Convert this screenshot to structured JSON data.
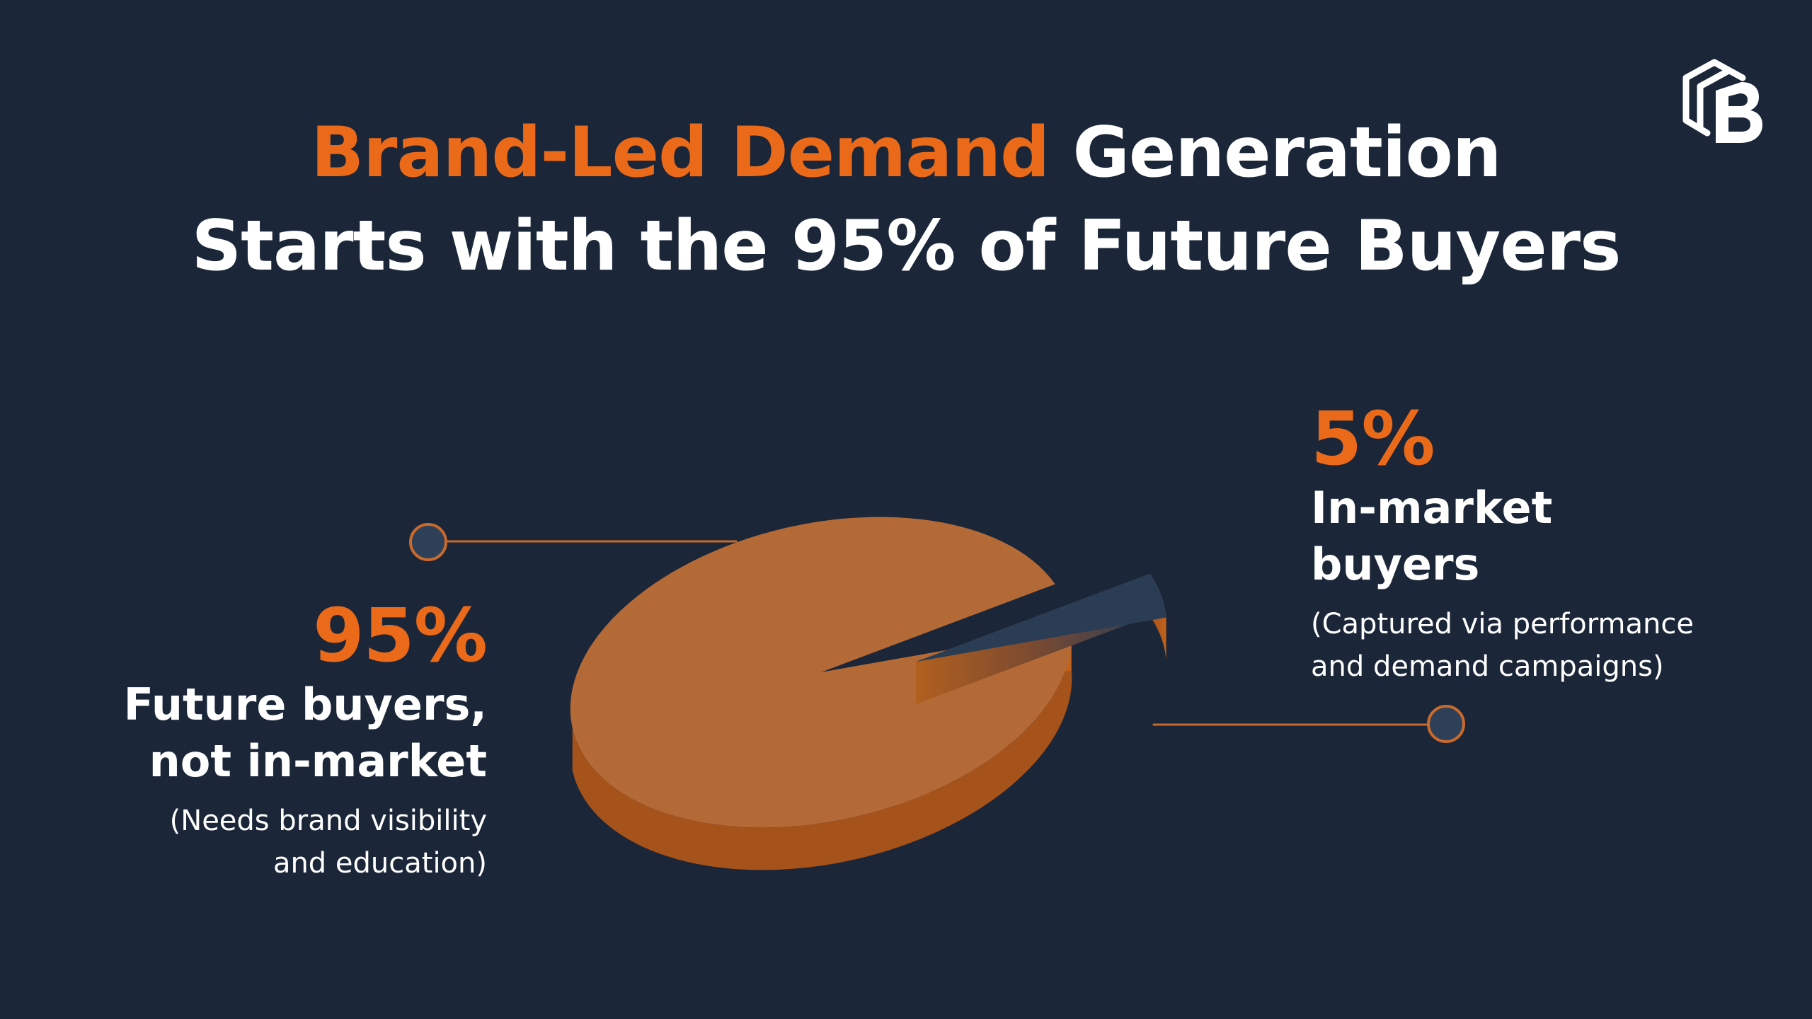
{
  "title": {
    "accent": "Brand-Led Demand",
    "rest_line1": " Generation",
    "line2": "Starts with the 95% of Future Buyers"
  },
  "logo": {
    "icon": "brand-b-cube-logo"
  },
  "colors": {
    "background": "#1b2638",
    "accent": "#ea6a19",
    "slice_main": "#b46a36",
    "slice_main_side": "#a5521b",
    "slice_minor": "#2b3d55",
    "connector_dot": "#2d4058"
  },
  "chart_data": {
    "type": "pie",
    "style": "3d-exploded",
    "categories": [
      "Future buyers, not in-market",
      "In-market buyers"
    ],
    "values": [
      95,
      5
    ],
    "unit": "%",
    "slices": [
      {
        "value_label": "95%",
        "label_line1": "Future buyers,",
        "label_line2": "not in-market",
        "note_line1": "(Needs brand visibility",
        "note_line2": "and education)"
      },
      {
        "value_label": "5%",
        "label_line1": "In-market",
        "label_line2": "buyers",
        "note_line1": "(Captured via performance",
        "note_line2": "and demand campaigns)"
      }
    ]
  }
}
